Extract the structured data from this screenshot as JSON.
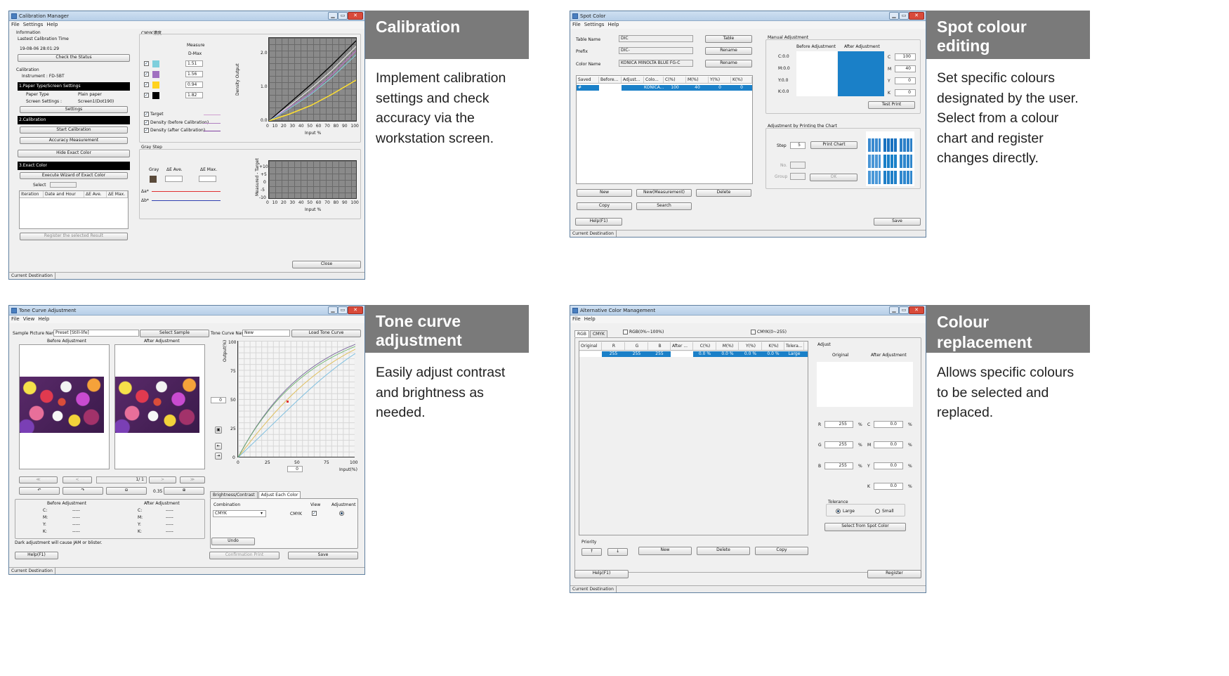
{
  "panels": {
    "calibration": {
      "title": "Calibration",
      "desc": "Implement calibration settings and check accuracy via the workstation screen."
    },
    "spot": {
      "title": "Spot colour editing",
      "desc": "Set specific colours designated by the user. Select from a colour chart and register changes directly."
    },
    "tone": {
      "title": "Tone curve adjustment",
      "desc": "Easily adjust contrast and brightness as needed."
    },
    "replace": {
      "title": "Colour replacement",
      "desc": "Allows specific colours to be selected and replaced."
    }
  },
  "common": {
    "menu_file": "File",
    "menu_settings": "Settings",
    "menu_help": "Help",
    "menu_view": "View",
    "status": "Current Destination",
    "win_min": "▁",
    "win_max": "▭",
    "win_close": "✕"
  },
  "cal": {
    "window_title": "Calibration Manager",
    "info_label": "Information",
    "last_time_label": "Lastest Calibration Time",
    "last_time": "19-08-06 28:01:29",
    "check_status": "Check the Status",
    "calibration_label": "Calibration",
    "instrument": "Instrument :   FD-5BT",
    "step1": "1.Paper Type/Screen Settings",
    "paper_type_label": "Paper Type",
    "paper_type": "Plain paper",
    "screen_label": "Screen Settings :",
    "screen": "Screen1(Dot190)",
    "settings_btn": "Settings",
    "step2": "2.Calibration",
    "start_btn": "Start Calibration",
    "accuracy_btn": "Accuracy Measurement",
    "hide_btn": "Hide Exact Color",
    "step3": "3.Exact Color",
    "wizard_btn": "Execute Wizard of Exact Color",
    "select_label": "Select",
    "cols": [
      "Iteration",
      "Date and Hour",
      "ΔE Ave.",
      "ΔE Max."
    ],
    "register_btn": "Register the selected Result",
    "cmyk_label": "CMYK濃度",
    "measure": "Measure",
    "dmax": "D-Max",
    "dmax_values": [
      "1.51",
      "1.56",
      "0.94",
      "1.82"
    ],
    "legend": [
      "Target",
      "Density (before Calibration)",
      "Density (after Calibration)"
    ],
    "gray_label": "Gray Step",
    "gray": "Gray",
    "de_ave": "ΔE Ave.",
    "de_max": "ΔE Max.",
    "da": "Δa*",
    "db": "Δb*",
    "y1_label": "Density Output",
    "y1_ticks": [
      "2.0",
      "1.0",
      "0.0"
    ],
    "y2_label": "Measured - Target",
    "y2_ticks": [
      "+10",
      "+5",
      "0",
      "-5",
      "-10"
    ],
    "x_ticks": [
      "0",
      "10",
      "20",
      "30",
      "40",
      "50",
      "60",
      "70",
      "80",
      "90",
      "100"
    ],
    "x_label": "Input %",
    "close_btn": "Close"
  },
  "spot": {
    "window_title": "Spot Color",
    "table_name_label": "Table Name",
    "table_name": "DIC",
    "prefix_label": "Prefix",
    "prefix": "DIC-",
    "color_name_label": "Color Name",
    "color_name": "KONICA MINOLTA BLUE FG-C",
    "table_btn": "Table",
    "rename_btn": "Rename",
    "cols": [
      "Saved",
      "Before...",
      "Adjust...",
      "Colo...",
      "C(%)",
      "M(%)",
      "Y(%)",
      "K(%)"
    ],
    "row": [
      "#",
      "",
      "",
      "KONICA...",
      "100",
      "40",
      "0",
      "0"
    ],
    "manual": "Manual Adjustment",
    "before": "Before Adjustment",
    "after": "After Adjustment",
    "before_vals": [
      "C:0.0",
      "M:0.0",
      "Y:0.0",
      "K:0.0"
    ],
    "ch": [
      "C",
      "M",
      "Y",
      "K"
    ],
    "vals": [
      "100",
      "40",
      "0",
      "0"
    ],
    "test_print": "Test Print",
    "chart_label": "Adjustment by Printing the Chart",
    "step": "Step",
    "step_val": "5",
    "print_chart": "Print Chart",
    "no": "No.",
    "group": "Group",
    "ok": "OK",
    "new_btn": "New",
    "new_meas": "New(Measurement)",
    "delete": "Delete",
    "copy": "Copy",
    "search": "Search",
    "help": "Help(F1)",
    "save": "Save"
  },
  "tone": {
    "window_title": "Tone Curve Adjustment",
    "sample_label": "Sample Picture Name",
    "sample": "Preset [Still-life]",
    "select_sample": "Select Sample",
    "curve_label": "Tone Curve Name",
    "curve": "New",
    "load_curve": "Load Tone Curve",
    "before": "Before Adjustment",
    "after": "After Adjustment",
    "page": "1/ 1",
    "zoom": "0.35",
    "y_label": "Output(%)",
    "y_ticks": [
      "100",
      "75",
      "50",
      "25",
      "0"
    ],
    "x_ticks": [
      "0",
      "25",
      "50",
      "75",
      "100"
    ],
    "x_label": "Input(%)",
    "field_y": "0",
    "field_x": "0",
    "tab1": "Brightness/Contrast",
    "tab2": "Adjust Each Color",
    "combination": "Combination",
    "combo": "CMYK",
    "view": "View",
    "adjustment": "Adjustment",
    "cmyk": "CMYK",
    "undo": "Undo",
    "confirm": "Confirmation Print",
    "save": "Save",
    "info_before": "Before Adjustment",
    "info_after": "After Adjustment",
    "info_keys": [
      "C:",
      "M:",
      "Y:",
      "K:"
    ],
    "info_val": "-----",
    "warning": "Dark adjustment will cause JAM or blister.",
    "help": "Help(F1)",
    "nav_first": "≪",
    "nav_prev": "<",
    "nav_next": ">",
    "nav_last": "≫"
  },
  "repl": {
    "window_title": "Alternative Color Management",
    "tab_rgb": "RGB",
    "tab_cmyk": "CMYK",
    "chk_rgb": "RGB(0%~100%)",
    "chk_cmyk": "CMYK(0~255)",
    "cols": [
      "Original",
      "R",
      "G",
      "B",
      "After ...",
      "C(%)",
      "M(%)",
      "Y(%)",
      "K(%)",
      "Tolera..."
    ],
    "row": [
      "",
      "255",
      "255",
      "255",
      "",
      "0.0 %",
      "0.0 %",
      "0.0 %",
      "0.0 %",
      "Large"
    ],
    "adjust": "Adjust",
    "original": "Original",
    "after": "After Adjustment",
    "rgb_keys": [
      "R",
      "G",
      "B"
    ],
    "rgb_vals": [
      "255",
      "255",
      "255"
    ],
    "cmyk_keys": [
      "C",
      "M",
      "Y",
      "K"
    ],
    "cmyk_vals": [
      "0.0",
      "0.0",
      "0.0",
      "0.0"
    ],
    "pct": "%",
    "tolerance": "Tolerance",
    "large": "Large",
    "small": "Small",
    "select_spot": "Select from Spot Color",
    "priority": "Priority",
    "up": "↑",
    "down": "↓",
    "new": "New",
    "delete": "Delete",
    "copy": "Copy",
    "help": "Help(F1)",
    "register": "Register"
  },
  "colors": {
    "caption_bg": "#7a7a7a",
    "accent_blue": "#1a80c8",
    "cyan": "#7ecfdc",
    "magenta": "#a070c0",
    "yellow": "#ffd21e",
    "black": "#000000"
  }
}
